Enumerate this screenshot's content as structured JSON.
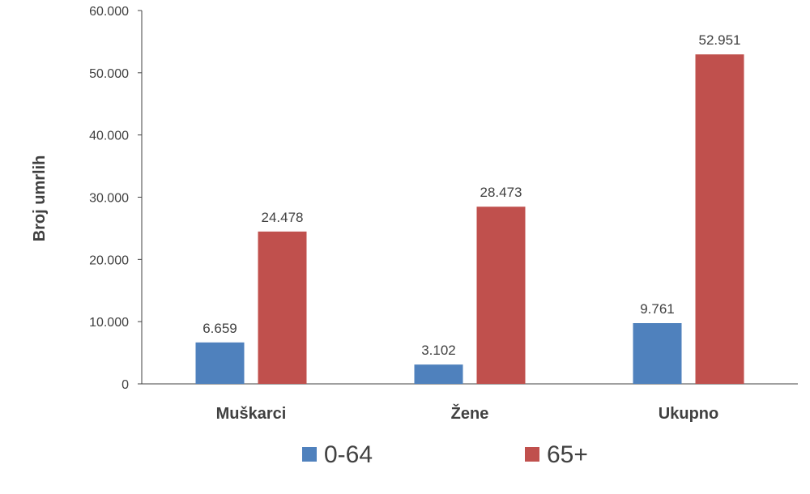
{
  "chart_data": {
    "type": "bar",
    "title": "",
    "xlabel": "",
    "ylabel": "Broj umrlih",
    "ylim": [
      0,
      60000
    ],
    "yticks": [
      0,
      10000,
      20000,
      30000,
      40000,
      50000,
      60000
    ],
    "ytick_labels": [
      "0",
      "10.000",
      "20.000",
      "30.000",
      "40.000",
      "50.000",
      "60.000"
    ],
    "categories": [
      "Muškarci",
      "Žene",
      "Ukupno"
    ],
    "series": [
      {
        "name": "0-64",
        "color": "#4f81bd",
        "values": [
          6659,
          3102,
          9761
        ],
        "labels": [
          "6.659",
          "3.102",
          "9.761"
        ]
      },
      {
        "name": "65+",
        "color": "#c0504d",
        "values": [
          24478,
          28473,
          52951
        ],
        "labels": [
          "24.478",
          "28.473",
          "52.951"
        ]
      }
    ],
    "grid": false,
    "legend_position": "bottom"
  }
}
